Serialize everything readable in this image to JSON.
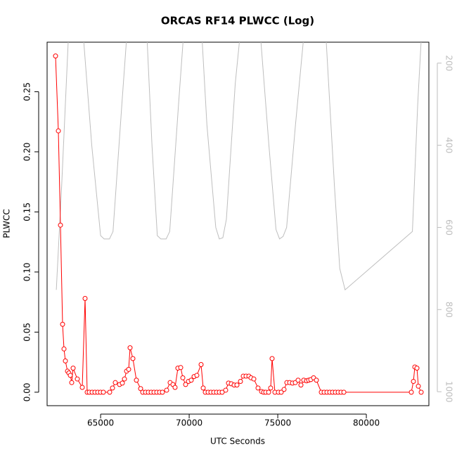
{
  "chart_data": {
    "type": "line",
    "title": "ORCAS RF14 PLWCC (Log)",
    "x_label": "UTC Seconds",
    "y_label": "PLWCC",
    "xlim": [
      61980,
      83530
    ],
    "xticks": [
      65000,
      70000,
      75000,
      80000
    ],
    "ylim": [
      -0.0112,
      0.2912
    ],
    "yticks": [
      {
        "value": 0,
        "label": "0.00"
      },
      0.05,
      {
        "value": 0.1,
        "label": "0.10"
      },
      0.15,
      {
        "value": 0.2,
        "label": "0.20"
      },
      0.25
    ],
    "y2lim": [
      1034,
      149
    ],
    "y2ticks": [
      200,
      400,
      600,
      800,
      1000
    ],
    "series": [
      {
        "name": "PLWCC",
        "color": "#ff0000",
        "markers": true,
        "x": [
          62456,
          62615,
          62734,
          62853,
          62933,
          63012,
          63131,
          63210,
          63290,
          63369,
          63448,
          63686,
          63964,
          64123,
          64242,
          64361,
          64520,
          64679,
          64838,
          64996,
          65155,
          65512,
          65671,
          65830,
          66068,
          66227,
          66346,
          66465,
          66584,
          66663,
          66822,
          67020,
          67258,
          67377,
          67536,
          67695,
          67854,
          68012,
          68171,
          68330,
          68489,
          68727,
          68925,
          69084,
          69203,
          69362,
          69521,
          69640,
          69799,
          69957,
          70116,
          70275,
          70433,
          70672,
          70791,
          70910,
          71069,
          71227,
          71386,
          71545,
          71703,
          71862,
          72060,
          72219,
          72378,
          72537,
          72695,
          72894,
          73053,
          73211,
          73370,
          73489,
          73648,
          73886,
          74084,
          74203,
          74323,
          74482,
          74600,
          74680,
          74839,
          75037,
          75196,
          75355,
          75513,
          75672,
          75831,
          75990,
          76148,
          76307,
          76466,
          76625,
          76744,
          76863,
          77021,
          77180,
          77458,
          77617,
          77776,
          77934,
          78093,
          78252,
          78411,
          78570,
          78729,
          82539,
          82658,
          82737,
          82856,
          82936,
          83095
        ],
        "values": [
          0.2797,
          0.2174,
          0.139,
          0.0565,
          0.036,
          0.026,
          0.0175,
          0.016,
          0.014,
          0.008,
          0.02,
          0.011,
          0.004,
          0.078,
          0,
          0,
          0,
          0,
          0,
          0,
          0,
          0,
          0.0035,
          0.008,
          0.0064,
          0.0076,
          0.011,
          0.0175,
          0.019,
          0.037,
          0.028,
          0.01,
          0.003,
          0,
          0,
          0,
          0,
          0,
          0,
          0,
          0,
          0.0017,
          0.008,
          0.0064,
          0.004,
          0.02,
          0.0205,
          0.012,
          0.0064,
          0.009,
          0.01,
          0.013,
          0.014,
          0.023,
          0.0035,
          0,
          0,
          0,
          0,
          0,
          0,
          0,
          0.0017,
          0.0076,
          0.007,
          0.006,
          0.006,
          0.009,
          0.0134,
          0.0134,
          0.0134,
          0.012,
          0.011,
          0.0035,
          0.0006,
          0,
          0,
          0,
          0.0035,
          0.028,
          0,
          0,
          0,
          0.0023,
          0.008,
          0.008,
          0.0076,
          0.008,
          0.01,
          0.006,
          0.01,
          0.0095,
          0.01,
          0.0105,
          0.012,
          0.01,
          0,
          0,
          0,
          0,
          0,
          0,
          0,
          0,
          0,
          0,
          0.009,
          0.021,
          0.02,
          0.005,
          0
        ]
      },
      {
        "color": "#bebebe",
        "axis": "y2",
        "markers": false,
        "x": [
          62500,
          62800,
          63200,
          64000,
          64500,
          65000,
          65200,
          65500,
          65700,
          66200,
          66500,
          67600,
          67900,
          68200,
          68400,
          68700,
          68900,
          69400,
          69700,
          70700,
          71000,
          71500,
          71700,
          71900,
          72100,
          72600,
          72900,
          74000,
          74500,
          74900,
          75100,
          75300,
          75500,
          76000,
          76500,
          77700,
          78200,
          78500,
          78800,
          82600,
          82900,
          83100
        ],
        "values": [
          752,
          500,
          120,
          120,
          400,
          620,
          628,
          628,
          610,
          300,
          120,
          120,
          400,
          620,
          628,
          628,
          610,
          300,
          120,
          120,
          350,
          600,
          628,
          625,
          580,
          250,
          120,
          120,
          400,
          605,
          628,
          622,
          600,
          350,
          120,
          120,
          500,
          700,
          752,
          610,
          300,
          140
        ]
      }
    ]
  }
}
